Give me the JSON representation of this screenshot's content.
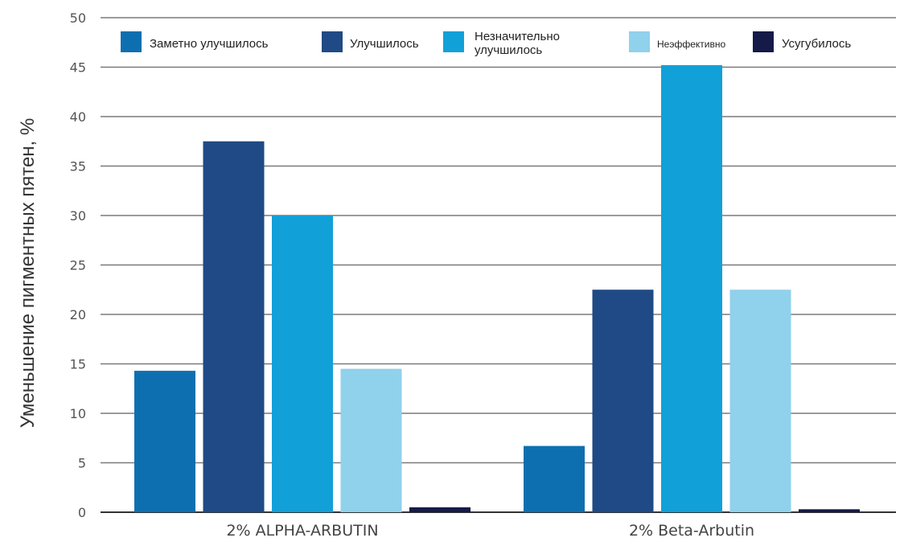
{
  "chart_data": {
    "type": "bar",
    "title": "",
    "xlabel": "",
    "ylabel": "Уменьшение пигментных пятен, %",
    "ylim": [
      0,
      50
    ],
    "yticks": [
      0,
      5,
      10,
      15,
      20,
      25,
      30,
      35,
      40,
      45,
      50
    ],
    "grid": true,
    "legend_position": "top",
    "categories": [
      "2% ALPHA-ARBUTIN",
      "2% Beta-Arbutin"
    ],
    "series": [
      {
        "name": "Заметно улучшилось",
        "color": "#0e6fb0",
        "values": [
          14.3,
          6.7
        ]
      },
      {
        "name": "Улучшилось",
        "color": "#1f4a85",
        "values": [
          37.5,
          22.5
        ]
      },
      {
        "name": "Незначительно улучшилось",
        "legend_lines": [
          "Незначительно",
          "улучшилось"
        ],
        "color": "#12a0d8",
        "values": [
          30.0,
          45.2
        ]
      },
      {
        "name": "Неэффективно",
        "color": "#90d1ec",
        "values": [
          14.5,
          22.5
        ]
      },
      {
        "name": "Усугубилось",
        "color": "#151a48",
        "values": [
          0.5,
          0.3
        ]
      }
    ]
  }
}
